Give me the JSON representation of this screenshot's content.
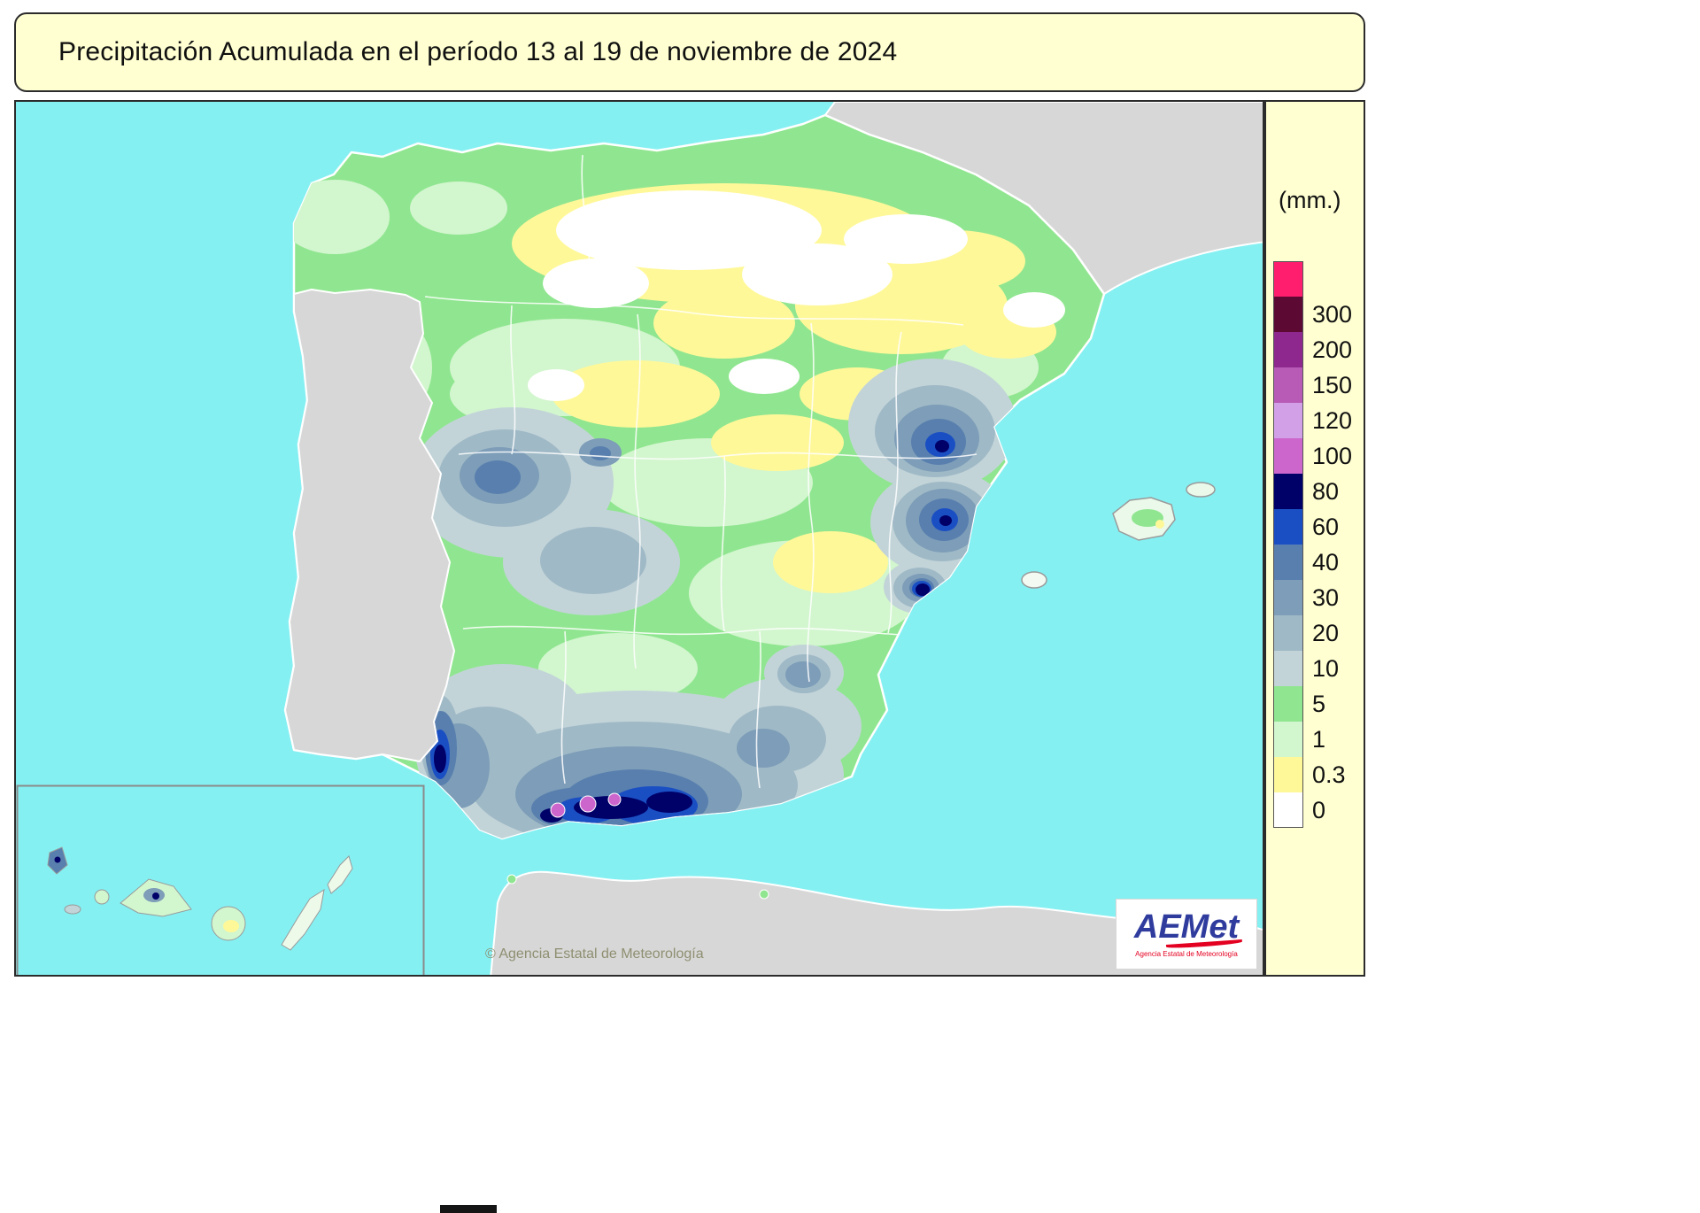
{
  "header": {
    "title": "Precipitación Acumulada en el período 13 al 19 de noviembre de 2024"
  },
  "legend": {
    "unit": "(mm.)",
    "entries": [
      {
        "label": "",
        "color": "#FF1E6E"
      },
      {
        "label": "300",
        "color": "#5C0A34"
      },
      {
        "label": "200",
        "color": "#8E288E"
      },
      {
        "label": "150",
        "color": "#B75BB7"
      },
      {
        "label": "120",
        "color": "#D2A0E6"
      },
      {
        "label": "100",
        "color": "#CC66CC"
      },
      {
        "label": "80",
        "color": "#000069"
      },
      {
        "label": "60",
        "color": "#1A4FC4"
      },
      {
        "label": "40",
        "color": "#587FAE"
      },
      {
        "label": "30",
        "color": "#7D9DB8"
      },
      {
        "label": "20",
        "color": "#9FB9C6"
      },
      {
        "label": "10",
        "color": "#C2D4D8"
      },
      {
        "label": "5",
        "color": "#90E690"
      },
      {
        "label": "1",
        "color": "#D2F6CE"
      },
      {
        "label": "0.3",
        "color": "#FFF899"
      },
      {
        "label": "0",
        "color": "#FFFFFF"
      }
    ]
  },
  "map": {
    "sea_color": "#85F0F2",
    "land_neutral_color": "#D7D7D7",
    "spain_base_color": "#90E690",
    "copyright": "© Agencia Estatal de Meteorología"
  },
  "logo": {
    "text": "AEMet",
    "subtext": "Agencia Estatal de Meteorología"
  }
}
